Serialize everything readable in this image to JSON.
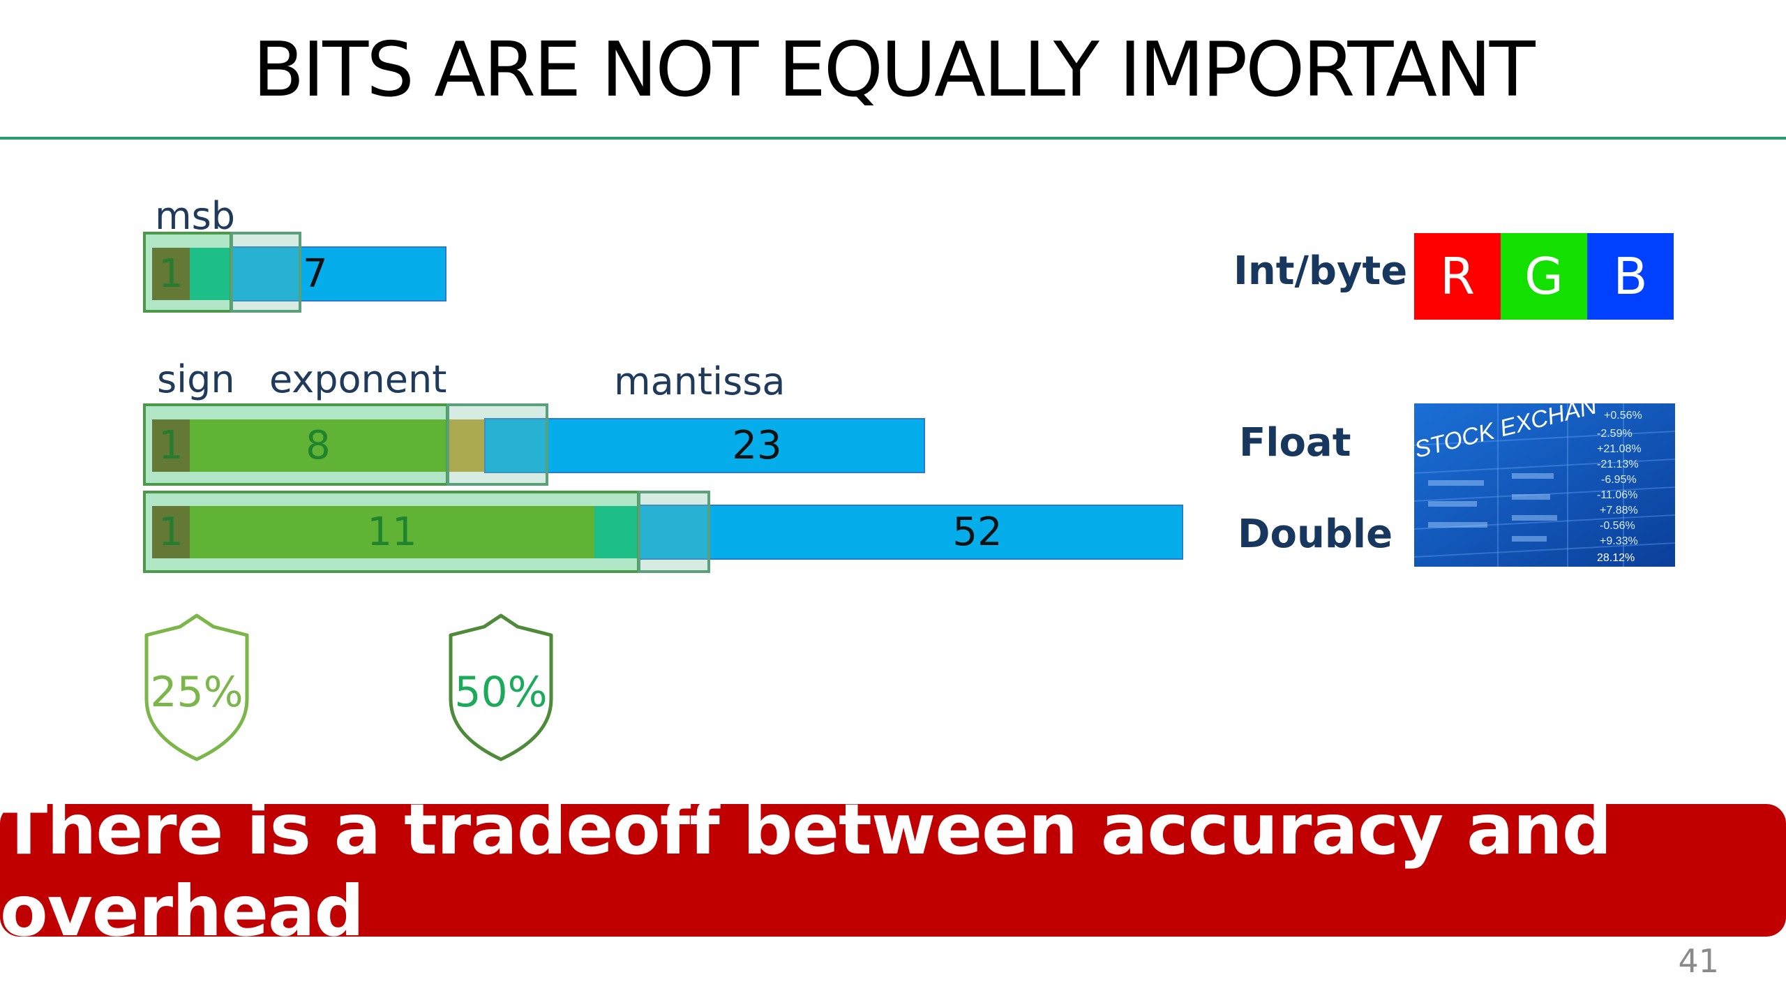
{
  "title": "BITS ARE NOT EQUALLY IMPORTANT",
  "int_row": {
    "label": "msb",
    "fields": [
      "1",
      "7"
    ]
  },
  "float_labels": {
    "sign": "sign",
    "exponent": "exponent",
    "mantissa": "mantissa"
  },
  "float_row": {
    "sign": "1",
    "exponent": "8",
    "mantissa": "23"
  },
  "double_row": {
    "sign": "1",
    "exponent": "11",
    "mantissa": "52"
  },
  "types": {
    "int": "Int/byte",
    "float": "Float",
    "double": "Double"
  },
  "rgb": [
    {
      "letter": "R",
      "color": "#ff0000"
    },
    {
      "letter": "G",
      "color": "#14e000"
    },
    {
      "letter": "B",
      "color": "#0040ff"
    }
  ],
  "stock_image": {
    "heading": "STOCK EXCHAN",
    "values": [
      "+0.56%",
      "-2.59%",
      "+21.08%",
      "-21.13%",
      "-6.95%",
      "-11.06%",
      "+7.88%",
      "-0.56%",
      "+9.33%",
      "28.12%"
    ]
  },
  "shields": [
    {
      "text": "25%",
      "color": "#7ab648"
    },
    {
      "text": "50%",
      "color": "#1aaa5a"
    }
  ],
  "banner": "There is a tradeoff between accuracy and overhead",
  "page_number": "41"
}
